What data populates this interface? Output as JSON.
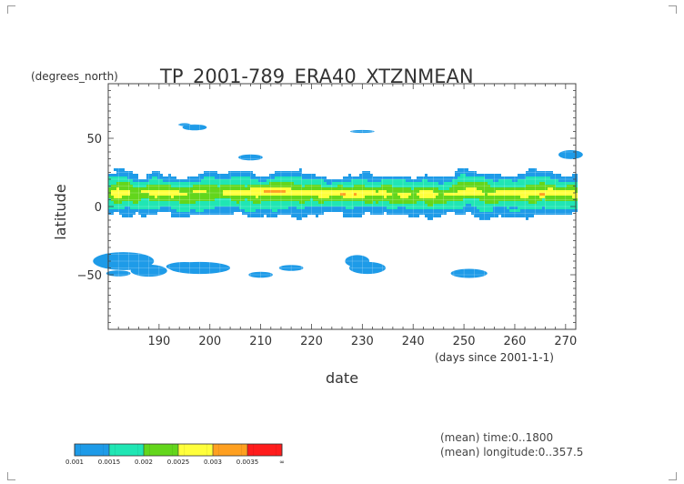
{
  "chart_data": {
    "type": "heatmap",
    "title": "TP_2001-789_ERA40_XTZNMEAN",
    "units": "(degrees_north)",
    "xlabel": "date",
    "xlabel_sub": "(days since 2001-1-1)",
    "ylabel": "latitude",
    "xlim": [
      180,
      272
    ],
    "ylim": [
      -90,
      90
    ],
    "x_ticks": [
      190,
      200,
      210,
      220,
      230,
      240,
      250,
      260,
      270
    ],
    "y_ticks": [
      50,
      0,
      -50
    ],
    "y_tick_labels": [
      "50",
      "0",
      "−50"
    ],
    "band": {
      "lat_south_edge": -7,
      "lat_north_edge": 24,
      "core_lat": 10,
      "hotspot_days": [
        213,
        226,
        265
      ]
    },
    "legend": {
      "levels": [
        "0.001",
        "0.0015",
        "0.002",
        "0.0025",
        "0.003",
        "0.0035",
        "∞"
      ],
      "colors": [
        "#1e9be8",
        "#20e6b4",
        "#63d61c",
        "#ffff3c",
        "#ffa020",
        "#ff1c1c"
      ]
    },
    "notes": [
      "(mean) time:0..1800",
      "(mean) longitude:0..357.5"
    ]
  }
}
